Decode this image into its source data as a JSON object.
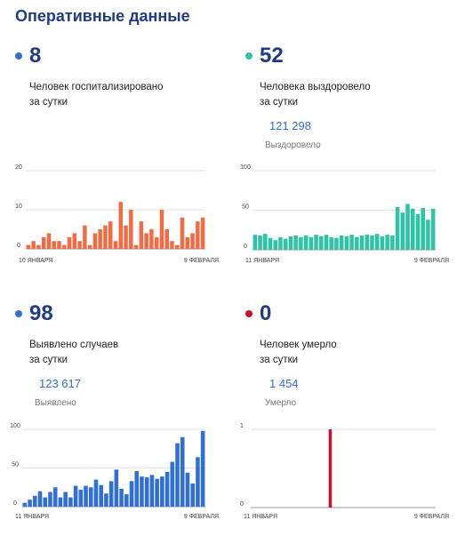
{
  "page_title": "Оперативные данные",
  "chart_data": [
    {
      "type": "bar",
      "big_value": "8",
      "description_line1": "Человек госпитализировано",
      "description_line2": "за сутки",
      "total": "",
      "total_label": "",
      "color": "#f26b43",
      "dot_color": "#2f6fd6",
      "x_start_label": "10 ЯНВАРЯ",
      "x_end_label": "9 ФЕВРАЛЯ",
      "yticks": [
        0,
        10,
        20
      ],
      "ylim": [
        0,
        20
      ],
      "values": [
        1,
        2,
        1,
        3,
        4,
        2,
        2,
        1,
        3,
        4,
        2,
        6,
        1,
        4,
        5,
        6,
        7,
        2,
        12,
        6,
        10,
        1,
        7,
        4,
        5,
        3,
        10,
        5,
        2,
        1,
        8,
        3,
        4,
        7,
        8
      ]
    },
    {
      "type": "bar",
      "big_value": "52",
      "description_line1": "Человека выздоровело",
      "description_line2": "за сутки",
      "total": "121 298",
      "total_label": "Выздоровело",
      "color": "#2ec4a5",
      "dot_color": "#2ec4a5",
      "x_start_label": "11 ЯНВАРЯ",
      "x_end_label": "9 ФЕВРАЛЯ",
      "yticks": [
        0,
        50,
        100
      ],
      "ylim": [
        0,
        100
      ],
      "values": [
        19,
        18,
        20,
        15,
        12,
        16,
        14,
        17,
        18,
        16,
        18,
        16,
        19,
        17,
        19,
        16,
        15,
        18,
        17,
        19,
        16,
        18,
        19,
        18,
        20,
        17,
        19,
        18,
        54,
        47,
        58,
        52,
        45,
        53,
        38,
        52
      ]
    },
    {
      "type": "bar",
      "big_value": "98",
      "description_line1": "Выявлено случаев",
      "description_line2": "за сутки",
      "total": "123 617",
      "total_label": "Выявлено",
      "color": "#2f6fd6",
      "dot_color": "#2f6fd6",
      "x_start_label": "11 ЯНВАРЯ",
      "x_end_label": "9 ФЕВРАЛЯ",
      "yticks": [
        0,
        50,
        100
      ],
      "ylim": [
        0,
        100
      ],
      "values": [
        5,
        9,
        14,
        20,
        12,
        19,
        25,
        12,
        19,
        12,
        27,
        22,
        27,
        25,
        35,
        28,
        17,
        33,
        48,
        23,
        16,
        33,
        46,
        39,
        38,
        41,
        36,
        39,
        45,
        58,
        82,
        90,
        44,
        30,
        64,
        98
      ]
    },
    {
      "type": "bar",
      "big_value": "0",
      "description_line1": "Человек умерло",
      "description_line2": "за сутки",
      "total": "1 454",
      "total_label": "Умерло",
      "color": "#c8102e",
      "dot_color": "#c8102e",
      "x_start_label": "11 ЯНВАРЯ",
      "x_end_label": "9 ФЕВРАЛЯ",
      "yticks": [
        0,
        1
      ],
      "ylim": [
        0,
        1
      ],
      "values": [
        0,
        0,
        0,
        0,
        0,
        0,
        0,
        0,
        0,
        0,
        0,
        0,
        0,
        0,
        0,
        0,
        0,
        0,
        0,
        0,
        0,
        1,
        0,
        0,
        0,
        0,
        0,
        0,
        0,
        0,
        0,
        0,
        0,
        0,
        0,
        0,
        0,
        0,
        0,
        0,
        0,
        0,
        0,
        0,
        0,
        0,
        0,
        0,
        0,
        0
      ]
    }
  ]
}
